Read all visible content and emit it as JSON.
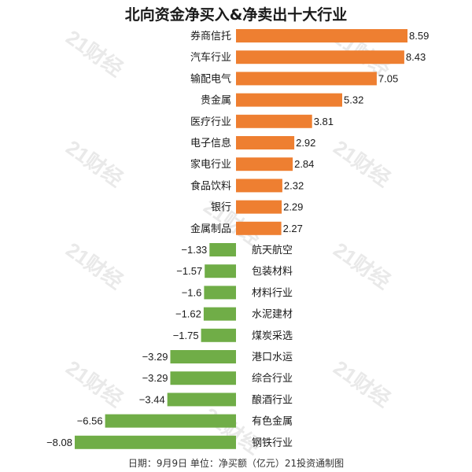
{
  "title": "北向资金净买入&净卖出十大行业",
  "footer": "日期：9月9日 单位：净买额（亿元）21投资通制图",
  "watermark": "21财经",
  "colors": {
    "positive": "#ee7f31",
    "negative": "#70ad47",
    "text": "#1a1a1a"
  },
  "chart_data": {
    "type": "bar",
    "orientation": "horizontal",
    "title": "北向资金净买入&净卖出十大行业",
    "unit": "净买额（亿元）",
    "categories": [
      "券商信托",
      "汽车行业",
      "输配电气",
      "贵金属",
      "医疗行业",
      "电子信息",
      "家电行业",
      "食品饮料",
      "银行",
      "金属制品",
      "航天航空",
      "包装材料",
      "材料行业",
      "水泥建材",
      "煤炭采选",
      "港口水运",
      "综合行业",
      "酿酒行业",
      "有色金属",
      "钢铁行业"
    ],
    "values": [
      8.59,
      8.43,
      7.05,
      5.32,
      3.81,
      2.92,
      2.84,
      2.32,
      2.29,
      2.27,
      -1.33,
      -1.57,
      -1.6,
      -1.62,
      -1.75,
      -3.29,
      -3.29,
      -3.44,
      -6.56,
      -8.08
    ],
    "value_labels": [
      "8.59",
      "8.43",
      "7.05",
      "5.32",
      "3.81",
      "2.92",
      "2.84",
      "2.32",
      "2.29",
      "2.27",
      "−1.33",
      "−1.57",
      "−1.6",
      "−1.62",
      "−1.75",
      "−3.29",
      "−3.29",
      "−3.44",
      "−6.56",
      "−8.08"
    ],
    "xlim": [
      -8.08,
      8.59
    ],
    "grid": false,
    "legend": "none"
  }
}
